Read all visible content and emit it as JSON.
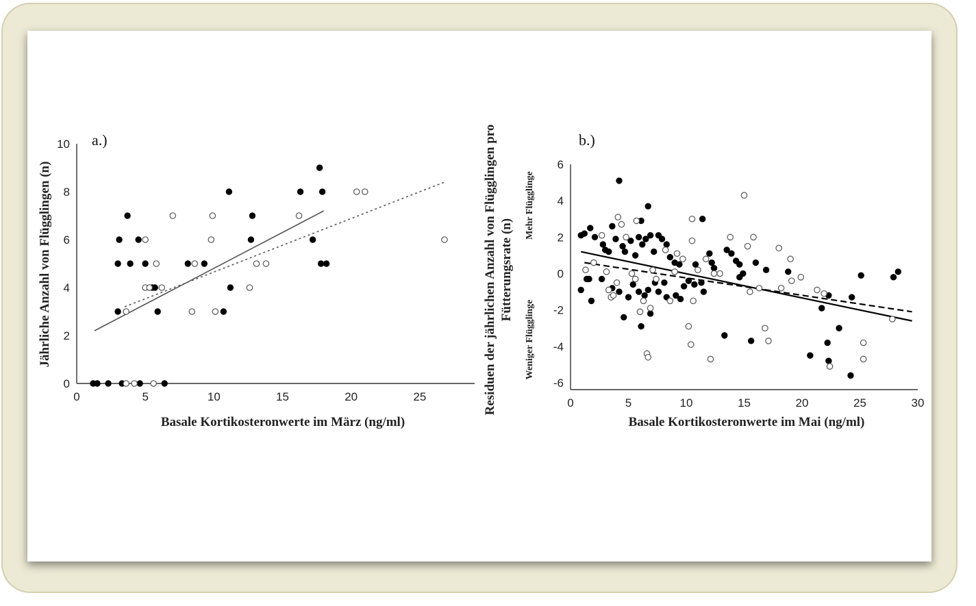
{
  "chart_data": [
    {
      "type": "scatter",
      "panel_label": "a.)",
      "xlabel": "Basale Kortikosteronwerte im März (ng/ml)",
      "ylabel": "Jährliche Anzahl von Flügglingen (n)",
      "xlim": [
        0,
        29
      ],
      "ylim": [
        0,
        10
      ],
      "xticks": [
        0,
        5,
        10,
        15,
        20,
        25
      ],
      "yticks": [
        0,
        2,
        4,
        6,
        8,
        10
      ],
      "grid": false,
      "series": [
        {
          "marker": "filled-circle",
          "color": "#000000",
          "points": [
            [
              1.2,
              0
            ],
            [
              1.5,
              0
            ],
            [
              2.3,
              0
            ],
            [
              3.3,
              0
            ],
            [
              4.6,
              0
            ],
            [
              6.4,
              0
            ],
            [
              3.0,
              3
            ],
            [
              3.0,
              5
            ],
            [
              3.1,
              6
            ],
            [
              3.7,
              7
            ],
            [
              3.9,
              5
            ],
            [
              4.5,
              6
            ],
            [
              5.0,
              5
            ],
            [
              5.5,
              4
            ],
            [
              5.7,
              4
            ],
            [
              5.9,
              3
            ],
            [
              8.1,
              5
            ],
            [
              9.3,
              5
            ],
            [
              10.7,
              3
            ],
            [
              11.1,
              8
            ],
            [
              11.2,
              4
            ],
            [
              12.7,
              6
            ],
            [
              12.8,
              7
            ],
            [
              16.3,
              8
            ],
            [
              17.2,
              6
            ],
            [
              17.7,
              9
            ],
            [
              17.8,
              5
            ],
            [
              17.9,
              8
            ],
            [
              18.2,
              5
            ]
          ]
        },
        {
          "marker": "open-circle",
          "color": "#555555",
          "points": [
            [
              3.6,
              0
            ],
            [
              4.2,
              0
            ],
            [
              5.6,
              0
            ],
            [
              3.6,
              3
            ],
            [
              5.0,
              6
            ],
            [
              5.0,
              4
            ],
            [
              5.3,
              4
            ],
            [
              5.8,
              5
            ],
            [
              6.2,
              4
            ],
            [
              7.0,
              7
            ],
            [
              8.4,
              3
            ],
            [
              8.6,
              5
            ],
            [
              9.8,
              6
            ],
            [
              9.9,
              7
            ],
            [
              10.1,
              3
            ],
            [
              12.6,
              4
            ],
            [
              13.1,
              5
            ],
            [
              13.8,
              5
            ],
            [
              16.2,
              7
            ],
            [
              20.4,
              8
            ],
            [
              21.0,
              8
            ],
            [
              26.8,
              6
            ]
          ]
        }
      ],
      "trendlines": [
        {
          "style": "solid",
          "x": [
            1.3,
            18.0
          ],
          "y": [
            2.2,
            7.2
          ]
        },
        {
          "style": "dotted",
          "x": [
            3.5,
            26.8
          ],
          "y": [
            3.2,
            8.4
          ]
        }
      ]
    },
    {
      "type": "scatter",
      "panel_label": "b.)",
      "xlabel": "Basale Kortikosteronwerte im Mai (ng/ml)",
      "ylabel_lines": [
        "Residuen der jährlichen Anzahl von Flügglingen pro",
        "Fütterungsrate (n)"
      ],
      "side_labels": {
        "top": "Mehr Flügglinge",
        "bottom": "Weniger Flügglinge"
      },
      "xlim": [
        0,
        30
      ],
      "ylim": [
        -6,
        6
      ],
      "xticks": [
        0,
        5,
        10,
        15,
        20,
        25,
        30
      ],
      "yticks": [
        -6,
        -4,
        -2,
        0,
        2,
        4,
        6
      ],
      "grid": false,
      "series": [
        {
          "marker": "filled-circle",
          "color": "#000000",
          "points": [
            [
              0.9,
              2.1
            ],
            [
              1.2,
              2.2
            ],
            [
              1.7,
              2.5
            ],
            [
              2.1,
              2.0
            ],
            [
              2.8,
              1.6
            ],
            [
              3.0,
              1.3
            ],
            [
              3.3,
              1.2
            ],
            [
              3.6,
              2.6
            ],
            [
              3.9,
              1.9
            ],
            [
              4.2,
              5.1
            ],
            [
              4.5,
              1.5
            ],
            [
              4.7,
              1.2
            ],
            [
              5.2,
              1.8
            ],
            [
              5.6,
              1.0
            ],
            [
              5.9,
              2.0
            ],
            [
              6.1,
              2.9
            ],
            [
              6.2,
              1.6
            ],
            [
              6.5,
              1.9
            ],
            [
              6.7,
              3.7
            ],
            [
              6.9,
              2.1
            ],
            [
              7.2,
              1.2
            ],
            [
              7.6,
              2.1
            ],
            [
              7.9,
              1.9
            ],
            [
              8.3,
              1.6
            ],
            [
              8.6,
              0.9
            ],
            [
              9.0,
              0.6
            ],
            [
              9.4,
              0.5
            ],
            [
              10.8,
              0.5
            ],
            [
              11.4,
              3.0
            ],
            [
              12.0,
              1.1
            ],
            [
              12.2,
              0.6
            ],
            [
              12.4,
              0.3
            ],
            [
              13.5,
              1.3
            ],
            [
              13.9,
              1.1
            ],
            [
              14.3,
              0.7
            ],
            [
              14.6,
              0.5
            ],
            [
              14.9,
              0.0
            ],
            [
              16.0,
              0.6
            ],
            [
              16.9,
              0.2
            ],
            [
              18.8,
              0.1
            ],
            [
              0.9,
              -0.9
            ],
            [
              1.4,
              -0.3
            ],
            [
              1.6,
              -0.3
            ],
            [
              1.8,
              -1.5
            ],
            [
              2.7,
              -0.3
            ],
            [
              3.6,
              -0.8
            ],
            [
              4.2,
              -1.0
            ],
            [
              4.6,
              -2.4
            ],
            [
              5.0,
              -1.3
            ],
            [
              5.4,
              -0.6
            ],
            [
              5.9,
              -1.0
            ],
            [
              6.1,
              -2.9
            ],
            [
              6.4,
              -1.2
            ],
            [
              6.7,
              -0.9
            ],
            [
              6.9,
              -2.2
            ],
            [
              7.3,
              -0.5
            ],
            [
              7.6,
              -1.0
            ],
            [
              8.1,
              -0.5
            ],
            [
              8.3,
              -1.3
            ],
            [
              9.1,
              -1.2
            ],
            [
              9.5,
              -1.4
            ],
            [
              9.8,
              -0.7
            ],
            [
              10.2,
              -0.4
            ],
            [
              10.7,
              -0.6
            ],
            [
              11.3,
              -0.5
            ],
            [
              11.5,
              -1.0
            ],
            [
              13.3,
              -3.4
            ],
            [
              14.6,
              -0.2
            ],
            [
              15.6,
              -3.7
            ],
            [
              21.7,
              -1.9
            ],
            [
              22.2,
              -3.8
            ],
            [
              22.3,
              -4.8
            ],
            [
              20.7,
              -4.5
            ],
            [
              22.3,
              -1.2
            ],
            [
              23.2,
              -3.0
            ],
            [
              24.2,
              -5.6
            ],
            [
              24.3,
              -1.3
            ],
            [
              25.1,
              -0.1
            ],
            [
              27.9,
              -0.2
            ],
            [
              28.3,
              0.1
            ]
          ]
        },
        {
          "marker": "open-circle",
          "color": "#555555",
          "points": [
            [
              1.3,
              0.2
            ],
            [
              2.0,
              0.6
            ],
            [
              2.7,
              2.1
            ],
            [
              3.1,
              0.1
            ],
            [
              3.3,
              -0.9
            ],
            [
              3.5,
              -1.3
            ],
            [
              3.7,
              -1.2
            ],
            [
              4.0,
              -0.5
            ],
            [
              4.1,
              3.1
            ],
            [
              4.4,
              2.7
            ],
            [
              4.8,
              2.0
            ],
            [
              5.3,
              0.0
            ],
            [
              5.6,
              -0.3
            ],
            [
              5.7,
              2.9
            ],
            [
              6.0,
              -2.1
            ],
            [
              6.3,
              -1.5
            ],
            [
              6.6,
              -4.4
            ],
            [
              6.7,
              -4.6
            ],
            [
              6.9,
              -1.9
            ],
            [
              7.1,
              0.2
            ],
            [
              7.4,
              -0.3
            ],
            [
              8.2,
              1.3
            ],
            [
              8.6,
              -1.5
            ],
            [
              9.0,
              0.1
            ],
            [
              9.2,
              1.1
            ],
            [
              9.7,
              0.8
            ],
            [
              10.2,
              -2.9
            ],
            [
              10.4,
              -3.9
            ],
            [
              10.5,
              3.0
            ],
            [
              10.5,
              1.8
            ],
            [
              10.6,
              -1.5
            ],
            [
              11.0,
              0.2
            ],
            [
              11.7,
              0.8
            ],
            [
              12.1,
              -4.7
            ],
            [
              12.4,
              0.0
            ],
            [
              12.9,
              0.0
            ],
            [
              13.8,
              2.0
            ],
            [
              15.0,
              4.3
            ],
            [
              15.3,
              1.5
            ],
            [
              15.5,
              -1.0
            ],
            [
              15.8,
              2.0
            ],
            [
              16.3,
              -0.8
            ],
            [
              16.8,
              -3.0
            ],
            [
              17.1,
              -3.7
            ],
            [
              18.0,
              1.4
            ],
            [
              18.2,
              -0.8
            ],
            [
              19.0,
              0.8
            ],
            [
              19.1,
              -0.4
            ],
            [
              19.9,
              -0.2
            ],
            [
              21.3,
              -0.9
            ],
            [
              21.9,
              -1.1
            ],
            [
              22.4,
              -5.1
            ],
            [
              25.3,
              -3.8
            ],
            [
              25.3,
              -4.7
            ],
            [
              27.8,
              -2.5
            ]
          ]
        }
      ],
      "trendlines": [
        {
          "style": "solid",
          "x": [
            0.9,
            29.5
          ],
          "y": [
            1.2,
            -2.6
          ]
        },
        {
          "style": "dashed",
          "x": [
            1.2,
            29.5
          ],
          "y": [
            0.6,
            -2.1
          ]
        }
      ]
    }
  ]
}
